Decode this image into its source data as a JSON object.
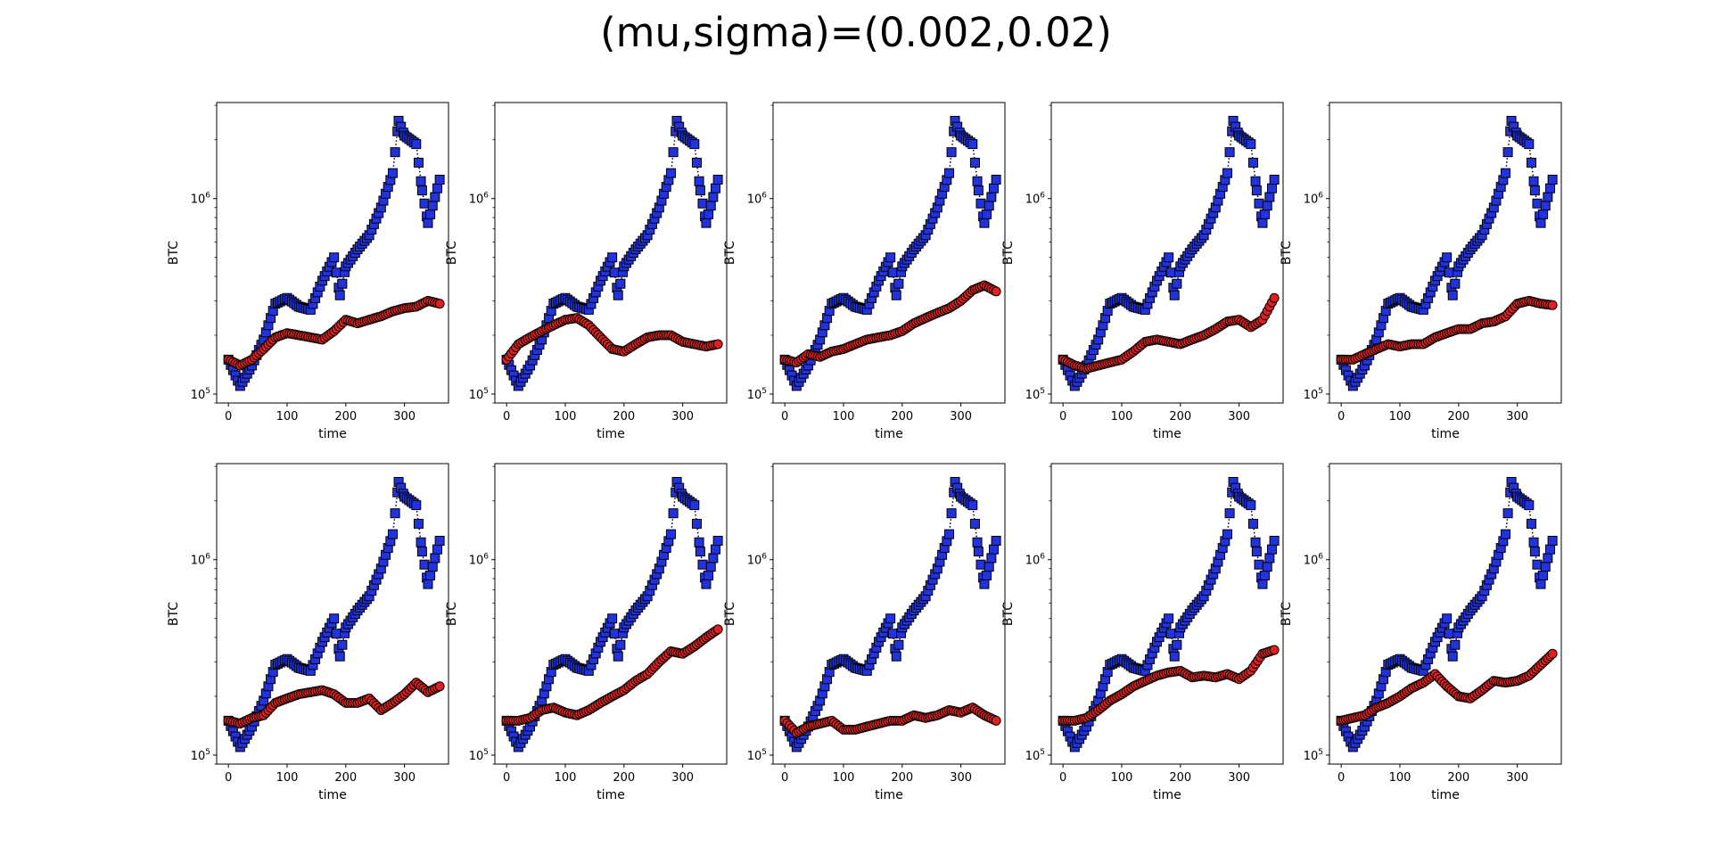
{
  "figure": {
    "title": "(mu,sigma)=(0.002,0.02)"
  },
  "colors": {
    "reference_series": "#2233dd",
    "simulated_series": "#e02020",
    "marker_edge": "#000000"
  },
  "chart_data": {
    "type": "scatter",
    "layout": "2 rows x 5 columns of subplots",
    "shared": {
      "xlabel": "time",
      "ylabel": "BTC",
      "xlim": [
        -20,
        375
      ],
      "ylim": [
        90000,
        3100000
      ],
      "yscale": "log",
      "x_ticks": [
        0,
        100,
        200,
        300
      ],
      "y_ticks": [
        {
          "value": 100000,
          "base": "10",
          "exp": "5"
        },
        {
          "value": 1000000,
          "base": "10",
          "exp": "6"
        }
      ],
      "grid": false,
      "reference_marker": "square",
      "simulated_marker": "circle",
      "reference_x": [
        0,
        20,
        40,
        60,
        80,
        100,
        120,
        140,
        160,
        180,
        190,
        200,
        220,
        240,
        260,
        280,
        290,
        300,
        320,
        330,
        340,
        360
      ],
      "reference_y": [
        150000,
        110000,
        140000,
        190000,
        290000,
        310000,
        280000,
        270000,
        380000,
        500000,
        320000,
        450000,
        550000,
        650000,
        900000,
        1350000,
        2500000,
        2100000,
        1900000,
        1100000,
        750000,
        1250000
      ]
    },
    "subplots": [
      {
        "panel": 1,
        "simulated_x": [
          0,
          20,
          40,
          60,
          80,
          100,
          120,
          140,
          160,
          180,
          200,
          220,
          240,
          260,
          280,
          300,
          320,
          340,
          360
        ],
        "simulated_y": [
          150000,
          140000,
          150000,
          170000,
          195000,
          205000,
          200000,
          195000,
          190000,
          210000,
          240000,
          230000,
          240000,
          250000,
          265000,
          275000,
          280000,
          300000,
          290000
        ]
      },
      {
        "panel": 2,
        "simulated_x": [
          0,
          20,
          40,
          60,
          80,
          100,
          120,
          140,
          160,
          180,
          200,
          220,
          240,
          260,
          280,
          300,
          320,
          340,
          360
        ],
        "simulated_y": [
          150000,
          180000,
          195000,
          210000,
          225000,
          240000,
          245000,
          225000,
          195000,
          170000,
          165000,
          180000,
          195000,
          200000,
          200000,
          185000,
          180000,
          175000,
          180000
        ]
      },
      {
        "panel": 3,
        "simulated_x": [
          0,
          20,
          40,
          60,
          80,
          100,
          120,
          140,
          160,
          180,
          200,
          220,
          240,
          260,
          280,
          300,
          320,
          340,
          360
        ],
        "simulated_y": [
          150000,
          145000,
          160000,
          155000,
          165000,
          170000,
          180000,
          190000,
          195000,
          200000,
          210000,
          230000,
          245000,
          260000,
          275000,
          300000,
          340000,
          360000,
          335000
        ]
      },
      {
        "panel": 4,
        "simulated_x": [
          0,
          20,
          40,
          60,
          80,
          100,
          120,
          140,
          160,
          180,
          200,
          220,
          240,
          260,
          280,
          300,
          320,
          340,
          360
        ],
        "simulated_y": [
          150000,
          140000,
          135000,
          140000,
          145000,
          150000,
          165000,
          185000,
          190000,
          185000,
          180000,
          190000,
          200000,
          215000,
          235000,
          240000,
          220000,
          240000,
          310000
        ]
      },
      {
        "panel": 5,
        "simulated_x": [
          0,
          20,
          40,
          60,
          80,
          100,
          120,
          140,
          160,
          180,
          200,
          220,
          240,
          260,
          280,
          300,
          320,
          340,
          360
        ],
        "simulated_y": [
          150000,
          150000,
          160000,
          170000,
          180000,
          175000,
          180000,
          180000,
          195000,
          205000,
          215000,
          215000,
          230000,
          235000,
          250000,
          290000,
          300000,
          290000,
          285000
        ]
      },
      {
        "panel": 6,
        "simulated_x": [
          0,
          20,
          40,
          60,
          80,
          100,
          120,
          140,
          160,
          180,
          200,
          220,
          240,
          260,
          280,
          300,
          320,
          340,
          360
        ],
        "simulated_y": [
          150000,
          145000,
          155000,
          160000,
          185000,
          195000,
          205000,
          210000,
          215000,
          205000,
          185000,
          185000,
          195000,
          170000,
          185000,
          205000,
          235000,
          210000,
          225000
        ]
      },
      {
        "panel": 7,
        "simulated_x": [
          0,
          20,
          40,
          60,
          80,
          100,
          120,
          140,
          160,
          180,
          200,
          220,
          240,
          260,
          280,
          300,
          320,
          340,
          360
        ],
        "simulated_y": [
          150000,
          150000,
          155000,
          170000,
          175000,
          165000,
          160000,
          170000,
          185000,
          200000,
          215000,
          240000,
          260000,
          300000,
          340000,
          330000,
          360000,
          400000,
          440000
        ]
      },
      {
        "panel": 8,
        "simulated_x": [
          0,
          20,
          40,
          60,
          80,
          100,
          120,
          140,
          160,
          180,
          200,
          220,
          240,
          260,
          280,
          300,
          320,
          340,
          360
        ],
        "simulated_y": [
          150000,
          130000,
          140000,
          145000,
          150000,
          135000,
          135000,
          140000,
          145000,
          150000,
          150000,
          160000,
          155000,
          160000,
          170000,
          165000,
          175000,
          160000,
          150000
        ]
      },
      {
        "panel": 9,
        "simulated_x": [
          0,
          20,
          40,
          60,
          80,
          100,
          120,
          140,
          160,
          180,
          200,
          220,
          240,
          260,
          280,
          300,
          320,
          340,
          360
        ],
        "simulated_y": [
          150000,
          150000,
          155000,
          170000,
          190000,
          205000,
          225000,
          240000,
          255000,
          265000,
          270000,
          250000,
          255000,
          250000,
          260000,
          245000,
          270000,
          330000,
          345000
        ]
      },
      {
        "panel": 10,
        "simulated_x": [
          0,
          20,
          40,
          60,
          80,
          100,
          120,
          140,
          160,
          180,
          200,
          220,
          240,
          260,
          280,
          300,
          320,
          340,
          360
        ],
        "simulated_y": [
          150000,
          155000,
          160000,
          175000,
          185000,
          200000,
          220000,
          235000,
          260000,
          225000,
          200000,
          195000,
          215000,
          240000,
          235000,
          240000,
          255000,
          290000,
          330000
        ]
      }
    ]
  }
}
